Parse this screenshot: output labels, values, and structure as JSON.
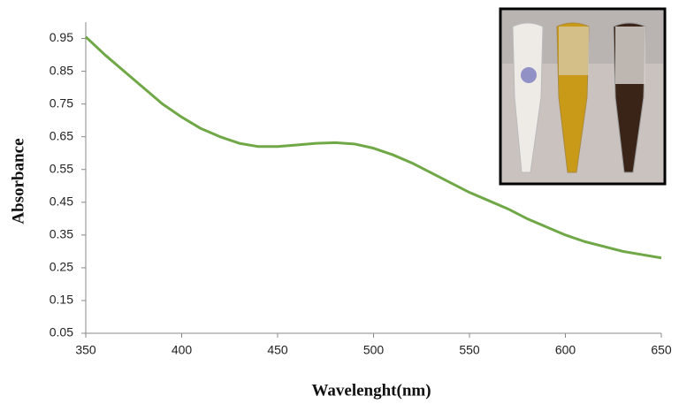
{
  "chart_data": {
    "type": "line",
    "x_label": "Wavelenght(nm)",
    "y_label": "Absorbance",
    "x": [
      350,
      360,
      370,
      380,
      390,
      400,
      410,
      420,
      430,
      440,
      450,
      460,
      470,
      480,
      490,
      500,
      510,
      520,
      530,
      540,
      550,
      560,
      570,
      580,
      590,
      600,
      610,
      620,
      630,
      640,
      650
    ],
    "series": [
      {
        "color": "#70a848",
        "values": [
          0.955,
          0.9,
          0.85,
          0.8,
          0.75,
          0.71,
          0.675,
          0.65,
          0.63,
          0.62,
          0.62,
          0.625,
          0.63,
          0.632,
          0.628,
          0.615,
          0.595,
          0.57,
          0.54,
          0.51,
          0.48,
          0.455,
          0.43,
          0.4,
          0.375,
          0.35,
          0.33,
          0.315,
          0.3,
          0.29,
          0.28
        ]
      }
    ],
    "xlim": [
      350,
      650
    ],
    "xticks": [
      350,
      400,
      450,
      500,
      550,
      600,
      650
    ],
    "ylim": [
      0.05,
      1.0
    ],
    "yticks": [
      0.05,
      0.15,
      0.25,
      0.35,
      0.45,
      0.55,
      0.65,
      0.75,
      0.85,
      0.95
    ],
    "grid": false
  }
}
